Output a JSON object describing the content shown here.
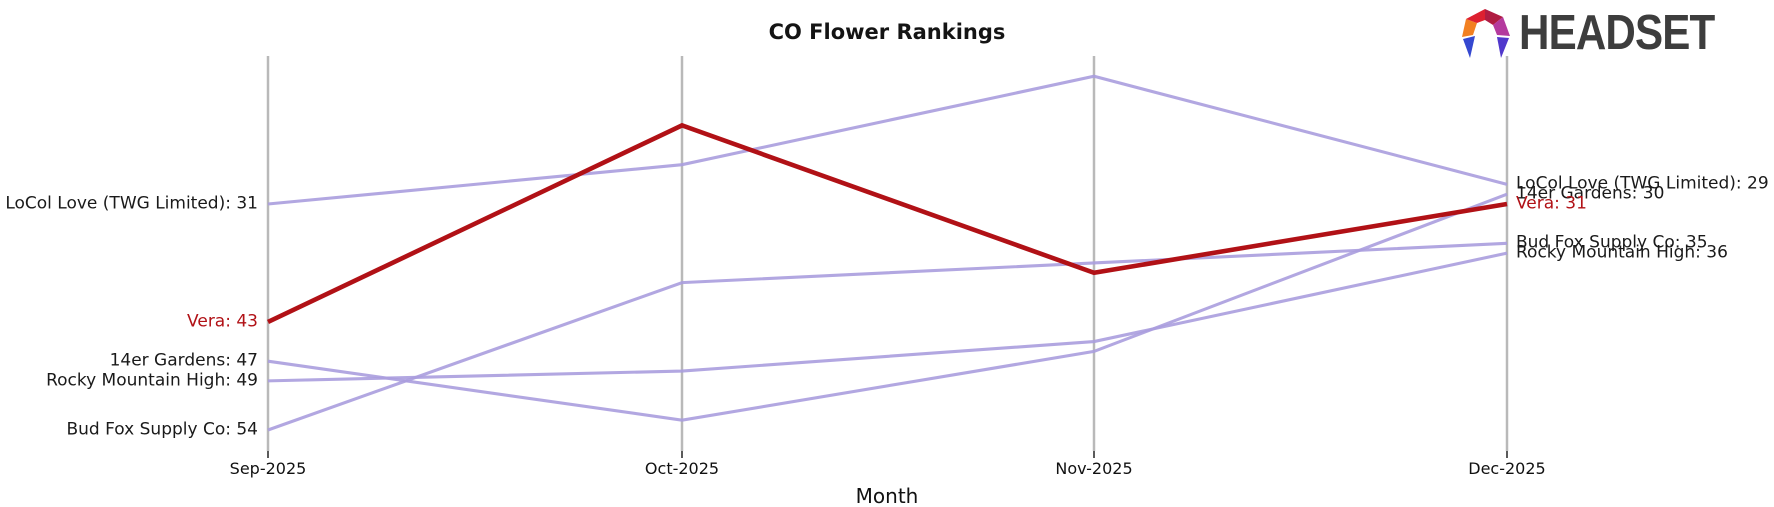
{
  "logo": {
    "text": "HEADSET",
    "text_color": "#3d3d3d",
    "mark_icon": "headset-arch-icon",
    "mark_colors": {
      "left_orange": "#f28021",
      "top_left_red": "#dd2030",
      "top_right_crimson": "#b01c42",
      "right_magenta": "#b43a9e",
      "bottom_right_indigo": "#5138cc",
      "bottom_left_blue": "#3548d0"
    }
  },
  "chart_data": {
    "type": "line",
    "title": "CO Flower Rankings",
    "xlabel": "Month",
    "x": [
      "Sep-2025",
      "Oct-2025",
      "Nov-2025",
      "Dec-2025"
    ],
    "y_meaning": "rank (lower number plotted higher)",
    "y_inverted": true,
    "ylim": [
      16,
      56
    ],
    "grid": "vertical-gridlines-only",
    "legend_position": "inline-edge-labels",
    "line_color_default": "#aa9dde",
    "line_color_highlight": "#b11116",
    "series": [
      {
        "name": "LoCol Love (TWG Limited)",
        "values": [
          31,
          27,
          18,
          29
        ],
        "color": "#aa9dde",
        "highlight": false
      },
      {
        "name": "14er Gardens",
        "values": [
          47,
          53,
          46,
          30
        ],
        "color": "#aa9dde",
        "highlight": false
      },
      {
        "name": "Rocky Mountain High",
        "values": [
          49,
          48,
          45,
          36
        ],
        "color": "#aa9dde",
        "highlight": false
      },
      {
        "name": "Bud Fox Supply Co",
        "values": [
          54,
          39,
          37,
          35
        ],
        "color": "#aa9dde",
        "highlight": false
      },
      {
        "name": "Vera",
        "values": [
          43,
          23,
          38,
          31
        ],
        "color": "#b11116",
        "highlight": true
      }
    ],
    "left_labels": [
      {
        "text": "LoCol Love (TWG Limited): 31",
        "value": 31,
        "color": "#1a1a1a"
      },
      {
        "text": "Vera: 43",
        "value": 43,
        "color": "#b11116"
      },
      {
        "text": "14er Gardens: 47",
        "value": 47,
        "color": "#1a1a1a"
      },
      {
        "text": "Rocky Mountain High: 49",
        "value": 49,
        "color": "#1a1a1a"
      },
      {
        "text": "Bud Fox Supply Co: 54",
        "value": 54,
        "color": "#1a1a1a"
      }
    ],
    "right_labels": [
      {
        "text": "LoCol Love (TWG Limited): 29",
        "value": 29,
        "color": "#1a1a1a"
      },
      {
        "text": "14er Gardens: 30",
        "value": 30,
        "color": "#1a1a1a"
      },
      {
        "text": "Vera: 31",
        "value": 31,
        "color": "#b11116"
      },
      {
        "text": "Bud Fox Supply Co: 35",
        "value": 35,
        "color": "#1a1a1a"
      },
      {
        "text": "Rocky Mountain High: 36",
        "value": 36,
        "color": "#1a1a1a"
      }
    ],
    "axis_color": "#b9b9b9",
    "tick_color": "#000000"
  }
}
